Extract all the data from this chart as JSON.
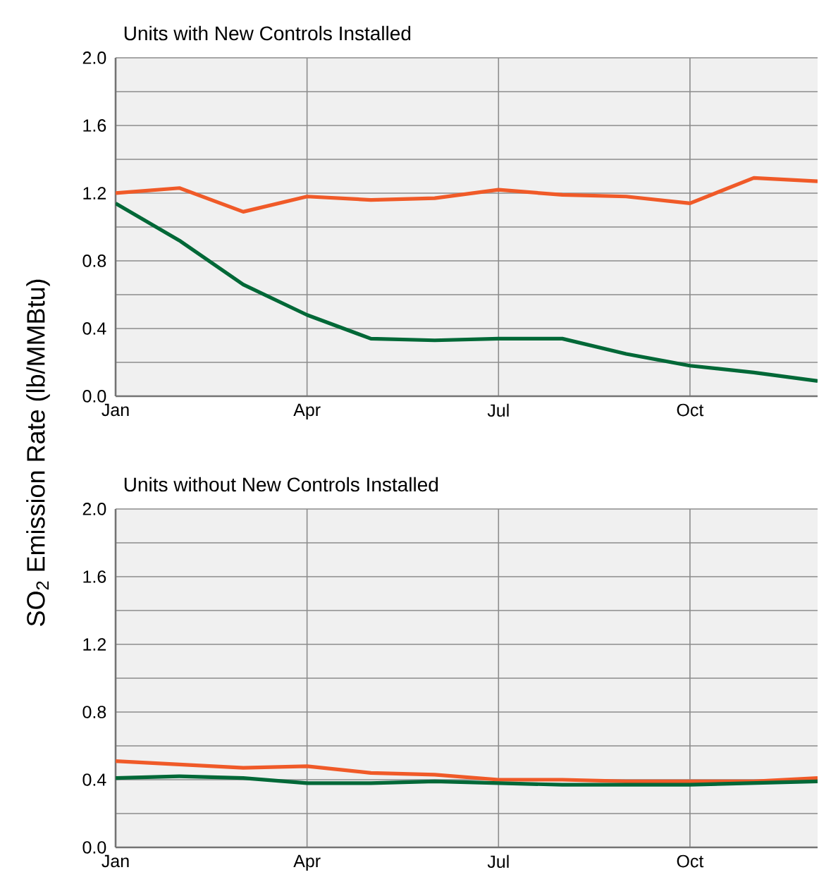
{
  "chart_data": [
    {
      "type": "line",
      "title": "Units with New Controls Installed",
      "ylabel": "SO$_{2}$ Emission Rate (lb/MMBtu)",
      "categories": [
        "Jan",
        null,
        null,
        "Apr",
        null,
        null,
        "Jul",
        null,
        null,
        "Oct",
        null,
        null
      ],
      "series": [
        {
          "color": "#f05a28",
          "values": [
            1.2,
            1.23,
            1.09,
            1.18,
            1.16,
            1.17,
            1.22,
            1.19,
            1.18,
            1.14,
            1.29,
            1.27
          ]
        },
        {
          "color": "#006837",
          "values": [
            1.14,
            0.92,
            0.66,
            0.48,
            0.34,
            0.33,
            0.34,
            0.34,
            0.25,
            0.18,
            0.14,
            0.09
          ]
        }
      ],
      "ylim": [
        0,
        2
      ],
      "yticks": [
        {
          "value": 0,
          "label": "0.0"
        },
        {
          "value": 0.2,
          "label": null
        },
        0.4,
        {
          "value": 0.6,
          "label": null
        },
        0.8,
        {
          "value": 1.0,
          "label": null
        },
        1.2,
        {
          "value": 1.4,
          "label": null
        },
        1.6,
        {
          "value": 1.8,
          "label": null
        },
        {
          "value": 2,
          "label": "2.0"
        }
      ],
      "grid": true
    },
    {
      "type": "line",
      "title": "Units without New Controls Installed",
      "categories": [
        "Jan",
        null,
        null,
        "Apr",
        null,
        null,
        "Jul",
        null,
        null,
        "Oct",
        null,
        null
      ],
      "series": [
        {
          "color": "#f05a28",
          "values": [
            0.51,
            0.49,
            0.47,
            0.48,
            0.44,
            0.43,
            0.4,
            0.4,
            0.39,
            0.39,
            0.39,
            0.41
          ]
        },
        {
          "color": "#006837",
          "values": [
            0.41,
            0.42,
            0.41,
            0.38,
            0.38,
            0.39,
            0.38,
            0.37,
            0.37,
            0.37,
            0.38,
            0.39
          ]
        }
      ],
      "ylim": [
        0,
        2
      ],
      "yticks": [
        {
          "value": 0,
          "label": "0.0"
        },
        {
          "value": 0.2,
          "label": null
        },
        0.4,
        {
          "value": 0.6,
          "label": null
        },
        0.8,
        {
          "value": 1.0,
          "label": null
        },
        1.2,
        {
          "value": 1.4,
          "label": null
        },
        1.6,
        {
          "value": 1.8,
          "label": null
        },
        {
          "value": 2,
          "label": "2.0"
        }
      ],
      "grid": true
    }
  ]
}
